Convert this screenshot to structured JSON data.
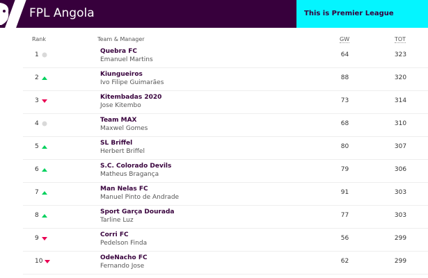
{
  "header": {
    "title": "FPL Angola",
    "promo": "This is Premier League"
  },
  "columns": {
    "rank": "Rank",
    "team": "Team & Manager",
    "gw": "GW",
    "tot": "TOT"
  },
  "colors": {
    "up": "#01d15d",
    "down": "#e90052",
    "same": "#d9d9d9"
  },
  "rows": [
    {
      "rank": "1",
      "move": "same",
      "team": "Quebra FC",
      "manager": "Emanuel Martins",
      "gw": "64",
      "tot": "323"
    },
    {
      "rank": "2",
      "move": "up",
      "team": "Kiungueiros",
      "manager": "Ivo Filipe Guimarães",
      "gw": "88",
      "tot": "320"
    },
    {
      "rank": "3",
      "move": "down",
      "team": "Kitembadas 2020",
      "manager": "Jose Kitembo",
      "gw": "73",
      "tot": "314"
    },
    {
      "rank": "4",
      "move": "same",
      "team": "Team MAX",
      "manager": "Maxwel Gomes",
      "gw": "68",
      "tot": "310"
    },
    {
      "rank": "5",
      "move": "up",
      "team": "SL Briffel",
      "manager": "Herbert Briffel",
      "gw": "80",
      "tot": "307"
    },
    {
      "rank": "6",
      "move": "up",
      "team": "S.C. Colorado Devils",
      "manager": "Matheus Bragança",
      "gw": "79",
      "tot": "306"
    },
    {
      "rank": "7",
      "move": "up",
      "team": "Man Nelas FC",
      "manager": "Manuel Pinto de Andrade",
      "gw": "91",
      "tot": "303"
    },
    {
      "rank": "8",
      "move": "up",
      "team": "Sport Garça Dourada",
      "manager": "Tarline Luz",
      "gw": "77",
      "tot": "303"
    },
    {
      "rank": "9",
      "move": "down",
      "team": "Corri FC",
      "manager": "Pedelson Finda",
      "gw": "56",
      "tot": "299"
    },
    {
      "rank": "10",
      "move": "down",
      "team": "OdeNacho FC",
      "manager": "Fernando Jose",
      "gw": "62",
      "tot": "299"
    }
  ]
}
